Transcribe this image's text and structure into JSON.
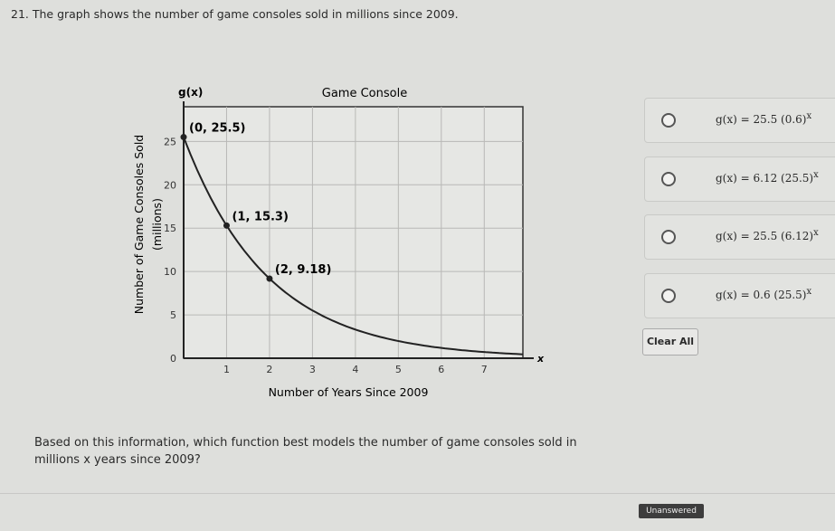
{
  "question": {
    "number_title": "21. The graph shows the number of game consoles sold in millions since 2009.",
    "prompt": "Based on this information, which function best models the number of game consoles sold in millions x years since 2009?"
  },
  "choices": [
    {
      "base": "g(x) = 25.5 (0.6)",
      "exp": "x"
    },
    {
      "base": "g(x) = 6.12 (25.5)",
      "exp": "x"
    },
    {
      "base": "g(x) = 25.5 (6.12)",
      "exp": "x"
    },
    {
      "base": "g(x) = 0.6 (25.5)",
      "exp": "x"
    }
  ],
  "clear_all_label": "Clear All",
  "status_label": "Unanswered",
  "chart_data": {
    "type": "line",
    "title": "Game Console",
    "xlabel": "Number of Years Since 2009",
    "ylabel": "Number of Game Consoles Sold",
    "ylabel2": "(millions)",
    "y_axis_name": "g(x)",
    "x_axis_name": "x",
    "xlim": [
      0,
      7.9
    ],
    "ylim": [
      0,
      29
    ],
    "x_ticks": [
      1,
      2,
      3,
      4,
      5,
      6,
      7
    ],
    "y_ticks": [
      0,
      5,
      10,
      15,
      20,
      25
    ],
    "grid": true,
    "curve": {
      "a": 25.5,
      "b": 0.6
    },
    "points": [
      {
        "x": 0,
        "y": 25.5,
        "label": "(0, 25.5)"
      },
      {
        "x": 1,
        "y": 15.3,
        "label": "(1, 15.3)"
      },
      {
        "x": 2,
        "y": 9.18,
        "label": "(2, 9.18)"
      }
    ],
    "colors": {
      "line": "#222222",
      "grid": "#b8b8b6"
    }
  }
}
